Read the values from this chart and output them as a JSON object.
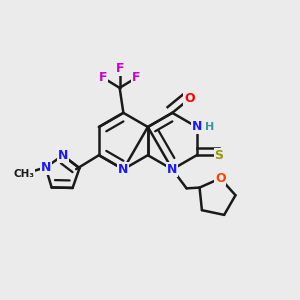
{
  "bg_color": "#ebebeb",
  "bond_color": "#1a1a1a",
  "bond_width": 1.8,
  "dbo": 0.025,
  "colors": {
    "N": "#1a1aff",
    "O": "#ff0000",
    "S": "#999900",
    "F": "#cc00cc",
    "H": "#339999",
    "C": "#1a1a1a",
    "O_thf": "#ff4400"
  },
  "fs": 9
}
